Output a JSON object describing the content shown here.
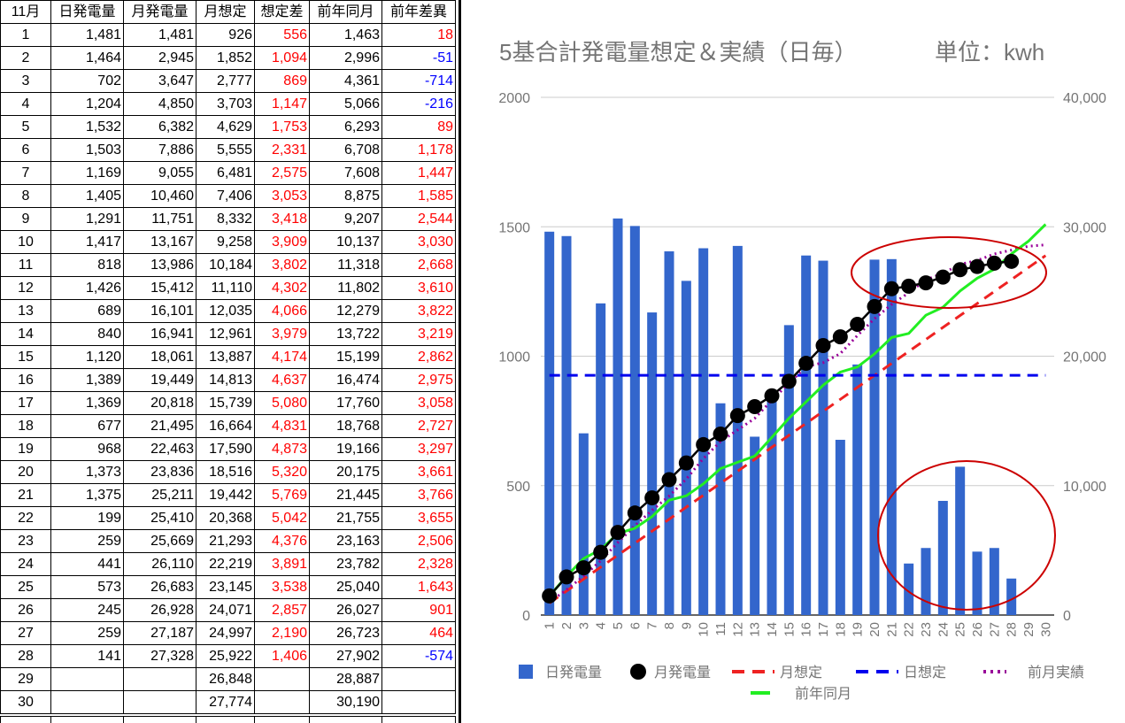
{
  "table": {
    "headers": [
      "11月",
      "日発電量",
      "月発電量",
      "月想定",
      "想定差",
      "前年同月",
      "前年差異"
    ],
    "rows": [
      [
        "1",
        "1,481",
        "1,481",
        "926",
        "556",
        "1,463",
        "18"
      ],
      [
        "2",
        "1,464",
        "2,945",
        "1,852",
        "1,094",
        "2,996",
        "-51"
      ],
      [
        "3",
        "702",
        "3,647",
        "2,777",
        "869",
        "4,361",
        "-714"
      ],
      [
        "4",
        "1,204",
        "4,850",
        "3,703",
        "1,147",
        "5,066",
        "-216"
      ],
      [
        "5",
        "1,532",
        "6,382",
        "4,629",
        "1,753",
        "6,293",
        "89"
      ],
      [
        "6",
        "1,503",
        "7,886",
        "5,555",
        "2,331",
        "6,708",
        "1,178"
      ],
      [
        "7",
        "1,169",
        "9,055",
        "6,481",
        "2,575",
        "7,608",
        "1,447"
      ],
      [
        "8",
        "1,405",
        "10,460",
        "7,406",
        "3,053",
        "8,875",
        "1,585"
      ],
      [
        "9",
        "1,291",
        "11,751",
        "8,332",
        "3,418",
        "9,207",
        "2,544"
      ],
      [
        "10",
        "1,417",
        "13,167",
        "9,258",
        "3,909",
        "10,137",
        "3,030"
      ],
      [
        "11",
        "818",
        "13,986",
        "10,184",
        "3,802",
        "11,318",
        "2,668"
      ],
      [
        "12",
        "1,426",
        "15,412",
        "11,110",
        "4,302",
        "11,802",
        "3,610"
      ],
      [
        "13",
        "689",
        "16,101",
        "12,035",
        "4,066",
        "12,279",
        "3,822"
      ],
      [
        "14",
        "840",
        "16,941",
        "12,961",
        "3,979",
        "13,722",
        "3,219"
      ],
      [
        "15",
        "1,120",
        "18,061",
        "13,887",
        "4,174",
        "15,199",
        "2,862"
      ],
      [
        "16",
        "1,389",
        "19,449",
        "14,813",
        "4,637",
        "16,474",
        "2,975"
      ],
      [
        "17",
        "1,369",
        "20,818",
        "15,739",
        "5,080",
        "17,760",
        "3,058"
      ],
      [
        "18",
        "677",
        "21,495",
        "16,664",
        "4,831",
        "18,768",
        "2,727"
      ],
      [
        "19",
        "968",
        "22,463",
        "17,590",
        "4,873",
        "19,166",
        "3,297"
      ],
      [
        "20",
        "1,373",
        "23,836",
        "18,516",
        "5,320",
        "20,175",
        "3,661"
      ],
      [
        "21",
        "1,375",
        "25,211",
        "19,442",
        "5,769",
        "21,445",
        "3,766"
      ],
      [
        "22",
        "199",
        "25,410",
        "20,368",
        "5,042",
        "21,755",
        "3,655"
      ],
      [
        "23",
        "259",
        "25,669",
        "21,293",
        "4,376",
        "23,163",
        "2,506"
      ],
      [
        "24",
        "441",
        "26,110",
        "22,219",
        "3,891",
        "23,782",
        "2,328"
      ],
      [
        "25",
        "573",
        "26,683",
        "23,145",
        "3,538",
        "25,040",
        "1,643"
      ],
      [
        "26",
        "245",
        "26,928",
        "24,071",
        "2,857",
        "26,027",
        "901"
      ],
      [
        "27",
        "259",
        "27,187",
        "24,997",
        "2,190",
        "26,723",
        "464"
      ],
      [
        "28",
        "141",
        "27,328",
        "25,922",
        "1,406",
        "27,902",
        "-574"
      ],
      [
        "29",
        "",
        "",
        "26,848",
        "",
        "28,887",
        ""
      ],
      [
        "30",
        "",
        "",
        "27,774",
        "",
        "30,190",
        ""
      ]
    ]
  },
  "colors": {
    "positive_diff": "#ff0000",
    "negative_diff": "#0000ff",
    "bar": "#3366cc",
    "monthly_actual": "#000000",
    "monthly_estimate": "#ee2222",
    "daily_estimate": "#0000ee",
    "prev_month": "#990099",
    "prev_year": "#22ee22",
    "annotation_circle": "#cc0000"
  },
  "chart_data": {
    "type": "bar",
    "title": "5基合計発電量想定＆実績（日毎）",
    "unit_label": "単位：kwh",
    "x": [
      "1",
      "2",
      "3",
      "4",
      "5",
      "6",
      "7",
      "8",
      "9",
      "10",
      "11",
      "12",
      "13",
      "14",
      "15",
      "16",
      "17",
      "18",
      "19",
      "20",
      "21",
      "22",
      "23",
      "24",
      "25",
      "26",
      "27",
      "28",
      "29",
      "30"
    ],
    "y_left": {
      "min": 0,
      "max": 2000,
      "ticks": [
        "0",
        "500",
        "1000",
        "1500",
        "2000"
      ]
    },
    "y_right": {
      "min": 0,
      "max": 40000,
      "ticks": [
        "0",
        "10,000",
        "20,000",
        "30,000",
        "40,000"
      ]
    },
    "grid": true,
    "legend_position": "bottom",
    "series": [
      {
        "name": "日発電量",
        "type": "bar",
        "axis": "left",
        "values": [
          1481,
          1464,
          702,
          1204,
          1532,
          1503,
          1169,
          1405,
          1291,
          1417,
          818,
          1426,
          689,
          840,
          1120,
          1389,
          1369,
          677,
          968,
          1373,
          1375,
          199,
          259,
          441,
          573,
          245,
          259,
          141,
          null,
          null
        ]
      },
      {
        "name": "月発電量",
        "type": "line-markers",
        "axis": "right",
        "values": [
          1481,
          2945,
          3647,
          4850,
          6382,
          7886,
          9055,
          10460,
          11751,
          13167,
          13986,
          15412,
          16101,
          16941,
          18061,
          19449,
          20818,
          21495,
          22463,
          23836,
          25211,
          25410,
          25669,
          26110,
          26683,
          26928,
          27187,
          27328,
          null,
          null
        ]
      },
      {
        "name": "月想定",
        "type": "dashed-line",
        "axis": "right",
        "values": [
          926,
          1852,
          2777,
          3703,
          4629,
          5555,
          6481,
          7406,
          8332,
          9258,
          10184,
          11110,
          12035,
          12961,
          13887,
          14813,
          15739,
          16664,
          17590,
          18516,
          19442,
          20368,
          21293,
          22219,
          23145,
          24071,
          24997,
          25922,
          26848,
          27774
        ]
      },
      {
        "name": "日想定",
        "type": "dashed-line",
        "axis": "left",
        "values": [
          926,
          926,
          926,
          926,
          926,
          926,
          926,
          926,
          926,
          926,
          926,
          926,
          926,
          926,
          926,
          926,
          926,
          926,
          926,
          926,
          926,
          926,
          926,
          926,
          926,
          926,
          926,
          926,
          926,
          926
        ]
      },
      {
        "name": "前月実績",
        "type": "dotted-line",
        "axis": "right",
        "values": [
          1000,
          1950,
          3000,
          4200,
          5600,
          6900,
          8100,
          9200,
          10500,
          12100,
          13400,
          14300,
          15200,
          16600,
          17900,
          19200,
          19500,
          20200,
          21600,
          22900,
          24000,
          24900,
          25900,
          26400,
          27100,
          27400,
          27900,
          28200,
          28500,
          28600
        ]
      },
      {
        "name": "前年同月",
        "type": "line",
        "axis": "right",
        "values": [
          1463,
          2996,
          4361,
          5066,
          6293,
          6708,
          7608,
          8875,
          9207,
          10137,
          11318,
          11802,
          12279,
          13722,
          15199,
          16474,
          17760,
          18768,
          19166,
          20175,
          21445,
          21755,
          23163,
          23782,
          25040,
          26027,
          26723,
          27902,
          28887,
          30190
        ]
      }
    ]
  }
}
